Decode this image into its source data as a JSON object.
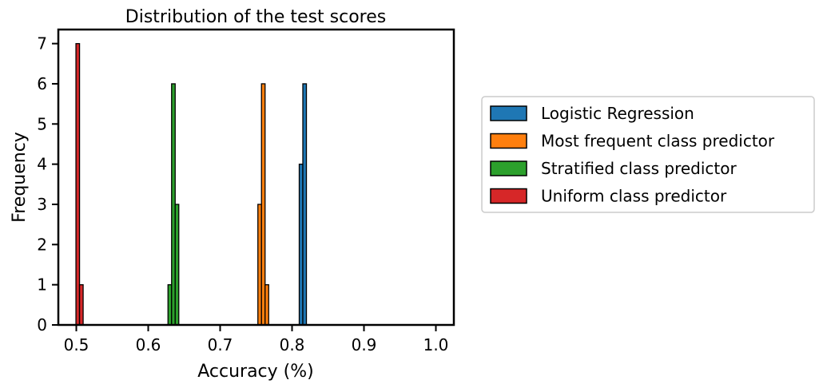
{
  "chart_data": {
    "type": "bar",
    "title": "Distribution of the test scores",
    "xlabel": "Accuracy (%)",
    "ylabel": "Frequency",
    "xlim": [
      0.475,
      1.025
    ],
    "ylim": [
      0,
      7.35
    ],
    "xticks": [
      0.5,
      0.6,
      0.7,
      0.8,
      0.9,
      1.0
    ],
    "yticks": [
      0,
      1,
      2,
      3,
      4,
      5,
      6,
      7
    ],
    "grid": false,
    "legend_position": "right, outside plot",
    "bin_width": 0.005,
    "series": [
      {
        "name": "Logistic Regression",
        "color": "#1f77b4",
        "bins": [
          {
            "x0": 0.81,
            "x1": 0.815,
            "y": 4
          },
          {
            "x0": 0.815,
            "x1": 0.82,
            "y": 6
          }
        ]
      },
      {
        "name": "Most frequent class predictor",
        "color": "#ff7f0e",
        "bins": [
          {
            "x0": 0.7525,
            "x1": 0.7575,
            "y": 3
          },
          {
            "x0": 0.7575,
            "x1": 0.7625,
            "y": 6
          },
          {
            "x0": 0.7625,
            "x1": 0.7675,
            "y": 1
          }
        ]
      },
      {
        "name": "Stratified class predictor",
        "color": "#2ca02c",
        "bins": [
          {
            "x0": 0.6275,
            "x1": 0.6325,
            "y": 1
          },
          {
            "x0": 0.6325,
            "x1": 0.6375,
            "y": 6
          },
          {
            "x0": 0.6375,
            "x1": 0.6425,
            "y": 3
          }
        ]
      },
      {
        "name": "Uniform class predictor",
        "color": "#d62728",
        "bins": [
          {
            "x0": 0.4995,
            "x1": 0.5045,
            "y": 7
          },
          {
            "x0": 0.5045,
            "x1": 0.5095,
            "y": 1
          }
        ]
      }
    ]
  }
}
